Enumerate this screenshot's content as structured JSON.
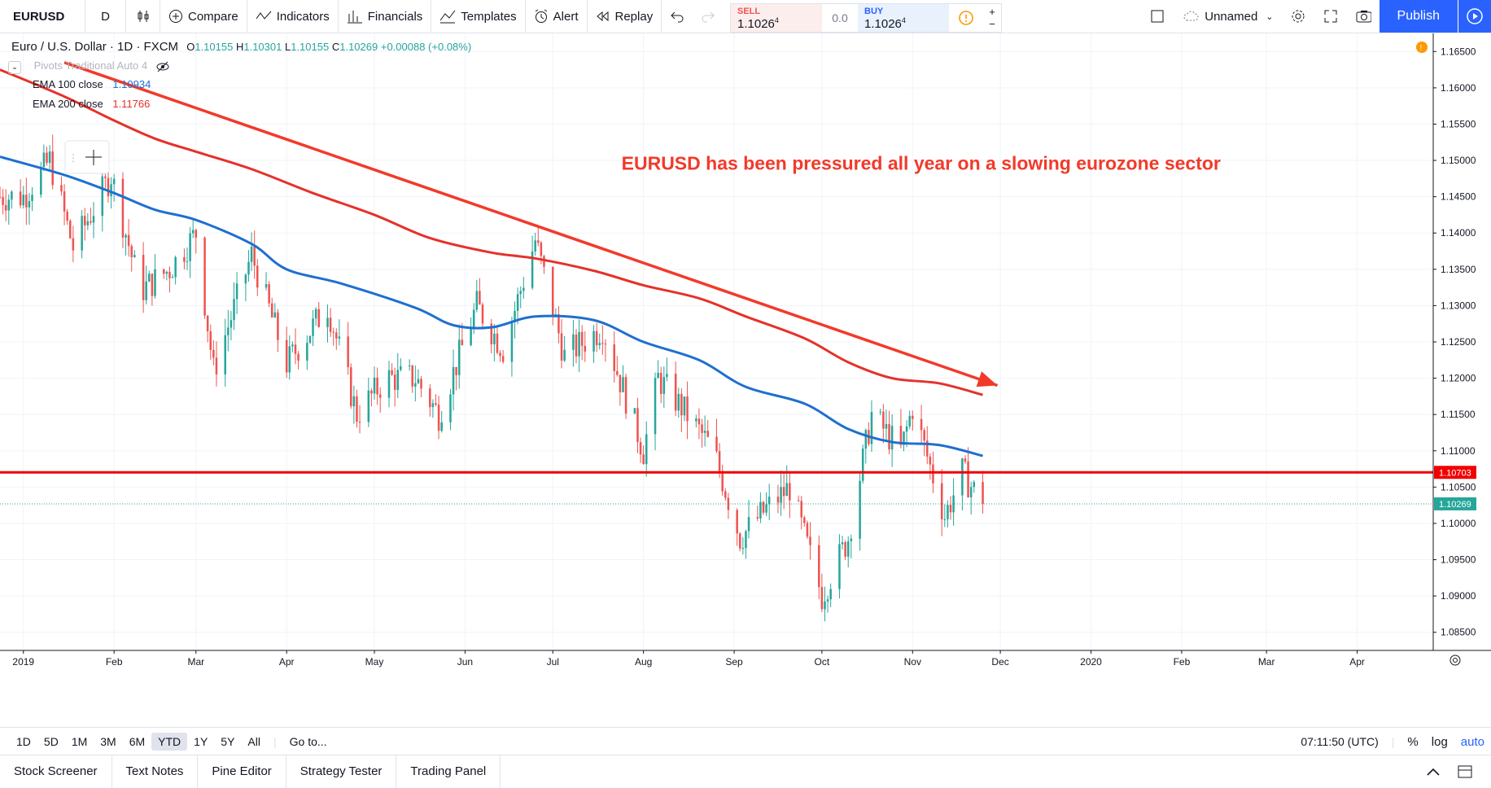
{
  "toolbar": {
    "symbol": "EURUSD",
    "interval": "D",
    "compare": "Compare",
    "indicators": "Indicators",
    "financials": "Financials",
    "templates": "Templates",
    "alert": "Alert",
    "replay": "Replay",
    "sell_label": "SELL",
    "sell_price": "1.1026",
    "sell_sup": "4",
    "spread": "0.0",
    "buy_label": "BUY",
    "buy_price": "1.1026",
    "buy_sup": "4",
    "layout_name": "Unnamed",
    "publish": "Publish"
  },
  "legend": {
    "title": "Euro / U.S. Dollar · 1D · FXCM",
    "open_label": "O",
    "open": "1.10155",
    "high_label": "H",
    "high": "1.10301",
    "low_label": "L",
    "low": "1.10155",
    "close_label": "C",
    "close": "1.10269",
    "change": "+0.00088 (+0.08%)",
    "pivots": "Pivots Traditional Auto 4",
    "ema100_label": "EMA 100 close",
    "ema100_value": "1.10934",
    "ema200_label": "EMA 200 close",
    "ema200_value": "1.11766"
  },
  "annotation": "EURUSD has been pressured all year on a slowing eurozone sector",
  "price_axis": [
    "1.16500",
    "1.16000",
    "1.15500",
    "1.15000",
    "1.14500",
    "1.14000",
    "1.13500",
    "1.13000",
    "1.12500",
    "1.12000",
    "1.11500",
    "1.11000",
    "1.10500",
    "1.10000",
    "1.09500",
    "1.09000",
    "1.08500"
  ],
  "price_markers": {
    "horizontal_line": "1.10703",
    "last_price": "1.10269"
  },
  "time_axis": [
    "2019",
    "Feb",
    "Mar",
    "Apr",
    "May",
    "Jun",
    "Jul",
    "Aug",
    "Sep",
    "Oct",
    "Nov",
    "Dec",
    "2020",
    "Feb",
    "Mar",
    "Apr"
  ],
  "bottom": {
    "ranges": [
      "1D",
      "5D",
      "1M",
      "3M",
      "6M",
      "YTD",
      "1Y",
      "5Y",
      "All"
    ],
    "active_range": "YTD",
    "goto": "Go to...",
    "clock": "07:11:50 (UTC)",
    "percent": "%",
    "log": "log",
    "auto": "auto"
  },
  "panels": [
    "Stock Screener",
    "Text Notes",
    "Pine Editor",
    "Strategy Tester",
    "Trading Panel"
  ],
  "colors": {
    "up": "#26a69a",
    "down": "#ef5350",
    "ema100": "#1e6fd0",
    "ema200": "#e5312a",
    "trend_arrow": "#f23a2a",
    "hline": "#f00000",
    "accent": "#2962ff"
  },
  "chart_data": {
    "type": "candlestick",
    "ylim": [
      1.0825,
      1.1675
    ],
    "x_range": [
      "2018-12-24",
      "2020-04-27"
    ],
    "ema100": [
      [
        "2018-12-24",
        1.1505
      ],
      [
        "2019-01-15",
        1.148
      ],
      [
        "2019-02-01",
        1.1455
      ],
      [
        "2019-02-15",
        1.1432
      ],
      [
        "2019-03-01",
        1.1418
      ],
      [
        "2019-03-20",
        1.1385
      ],
      [
        "2019-04-01",
        1.135
      ],
      [
        "2019-04-20",
        1.133
      ],
      [
        "2019-05-15",
        1.1297
      ],
      [
        "2019-05-28",
        1.1273
      ],
      [
        "2019-06-10",
        1.127
      ],
      [
        "2019-06-25",
        1.1285
      ],
      [
        "2019-07-15",
        1.128
      ],
      [
        "2019-08-01",
        1.125
      ],
      [
        "2019-08-20",
        1.1225
      ],
      [
        "2019-09-05",
        1.1188
      ],
      [
        "2019-09-25",
        1.1165
      ],
      [
        "2019-10-10",
        1.113
      ],
      [
        "2019-10-25",
        1.1112
      ],
      [
        "2019-11-10",
        1.1108
      ],
      [
        "2019-11-25",
        1.1093
      ]
    ],
    "ema200": [
      [
        "2018-12-24",
        1.1625
      ],
      [
        "2019-01-15",
        1.1588
      ],
      [
        "2019-02-01",
        1.1555
      ],
      [
        "2019-02-15",
        1.153
      ],
      [
        "2019-03-01",
        1.1512
      ],
      [
        "2019-03-20",
        1.1488
      ],
      [
        "2019-04-10",
        1.1455
      ],
      [
        "2019-05-01",
        1.1425
      ],
      [
        "2019-05-20",
        1.1393
      ],
      [
        "2019-06-10",
        1.1373
      ],
      [
        "2019-06-25",
        1.1365
      ],
      [
        "2019-07-15",
        1.1348
      ],
      [
        "2019-08-01",
        1.1328
      ],
      [
        "2019-08-20",
        1.131
      ],
      [
        "2019-09-05",
        1.1285
      ],
      [
        "2019-09-25",
        1.1255
      ],
      [
        "2019-10-10",
        1.1222
      ],
      [
        "2019-10-25",
        1.12
      ],
      [
        "2019-11-10",
        1.1193
      ],
      [
        "2019-11-25",
        1.1177
      ]
    ],
    "trend_line": {
      "from": [
        "2019-01-15",
        1.1635
      ],
      "to": [
        "2019-11-30",
        1.119
      ]
    },
    "horizontal_line": 1.10703,
    "close_path": [
      [
        "2019-01-01",
        1.145
      ],
      [
        "2019-01-10",
        1.15
      ],
      [
        "2019-01-18",
        1.138
      ],
      [
        "2019-01-31",
        1.148
      ],
      [
        "2019-02-10",
        1.132
      ],
      [
        "2019-02-20",
        1.135
      ],
      [
        "2019-03-01",
        1.14
      ],
      [
        "2019-03-07",
        1.121
      ],
      [
        "2019-03-20",
        1.137
      ],
      [
        "2019-04-01",
        1.122
      ],
      [
        "2019-04-15",
        1.13
      ],
      [
        "2019-04-25",
        1.115
      ],
      [
        "2019-05-05",
        1.12
      ],
      [
        "2019-05-15",
        1.12
      ],
      [
        "2019-05-23",
        1.115
      ],
      [
        "2019-06-05",
        1.13
      ],
      [
        "2019-06-14",
        1.124
      ],
      [
        "2019-06-25",
        1.139
      ],
      [
        "2019-07-05",
        1.123
      ],
      [
        "2019-07-18",
        1.127
      ],
      [
        "2019-08-01",
        1.11
      ],
      [
        "2019-08-06",
        1.12
      ],
      [
        "2019-08-14",
        1.116
      ],
      [
        "2019-08-25",
        1.11
      ],
      [
        "2019-09-03",
        1.098
      ],
      [
        "2019-09-12",
        1.102
      ],
      [
        "2019-09-20",
        1.105
      ],
      [
        "2019-10-01",
        1.09
      ],
      [
        "2019-10-10",
        1.098
      ],
      [
        "2019-10-18",
        1.115
      ],
      [
        "2019-10-28",
        1.11
      ],
      [
        "2019-11-01",
        1.116
      ],
      [
        "2019-11-12",
        1.101
      ],
      [
        "2019-11-18",
        1.107
      ],
      [
        "2019-11-25",
        1.1027
      ]
    ]
  }
}
